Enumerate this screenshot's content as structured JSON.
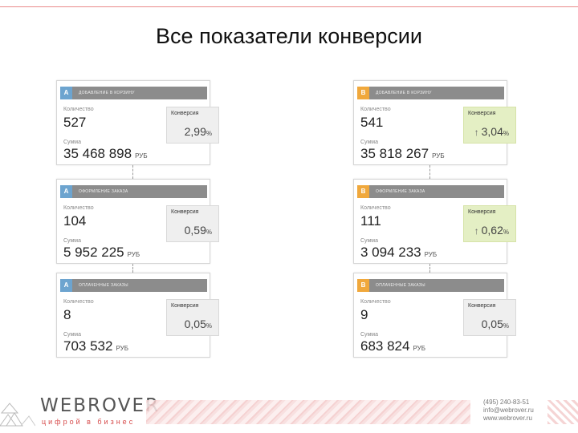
{
  "slide": {
    "title": "Все показатели конверсии"
  },
  "columns": [
    {
      "variant": "A",
      "badge_color": "#6da4cf",
      "cards": [
        {
          "goal": "Добавление в корзину",
          "count_label": "Количество",
          "count": "527",
          "sum_label": "Сумма",
          "sum": "35 468 898",
          "currency": "РУБ",
          "conv_title": "Конверсия",
          "conv_value": "2,99",
          "conv_pct": "%",
          "winner": false
        },
        {
          "goal": "Оформление заказа",
          "count_label": "Количество",
          "count": "104",
          "sum_label": "Сумма",
          "sum": "5 952 225",
          "currency": "РУБ",
          "conv_title": "Конверсия",
          "conv_value": "0,59",
          "conv_pct": "%",
          "winner": false
        },
        {
          "goal": "Оплаченные заказы",
          "count_label": "Количество",
          "count": "8",
          "sum_label": "Сумма",
          "sum": "703 532",
          "currency": "РУБ",
          "conv_title": "Конверсия",
          "conv_value": "0,05",
          "conv_pct": "%",
          "winner": false
        }
      ]
    },
    {
      "variant": "B",
      "badge_color": "#f0a83c",
      "cards": [
        {
          "goal": "Добавление в корзину",
          "count_label": "Количество",
          "count": "541",
          "sum_label": "Сумма",
          "sum": "35 818 267",
          "currency": "РУБ",
          "conv_title": "Конверсия",
          "conv_value": "3,04",
          "conv_pct": "%",
          "conv_arrow": "↑",
          "winner": true
        },
        {
          "goal": "Оформление заказа",
          "count_label": "Количество",
          "count": "111",
          "sum_label": "Сумма",
          "sum": "3 094 233",
          "currency": "РУБ",
          "conv_title": "Конверсия",
          "conv_value": "0,62",
          "conv_pct": "%",
          "conv_arrow": "↑",
          "winner": true
        },
        {
          "goal": "Оплаченные заказы",
          "count_label": "Количество",
          "count": "9",
          "sum_label": "Сумма",
          "sum": "683 824",
          "currency": "РУБ",
          "conv_title": "Конверсия",
          "conv_value": "0,05",
          "conv_pct": "%",
          "winner": false
        }
      ]
    }
  ],
  "colors": {
    "winner_bg": "#e4efc4",
    "neutral_bg": "#efefef",
    "header_bg": "#8c8c8c",
    "accent": "#d64a4a"
  },
  "footer": {
    "logo": "WEBROVER",
    "tagline": "цифрой в бизнес",
    "phone": "(495) 240-83-51",
    "email": "info@webrover.ru",
    "site": "www.webrover.ru"
  }
}
